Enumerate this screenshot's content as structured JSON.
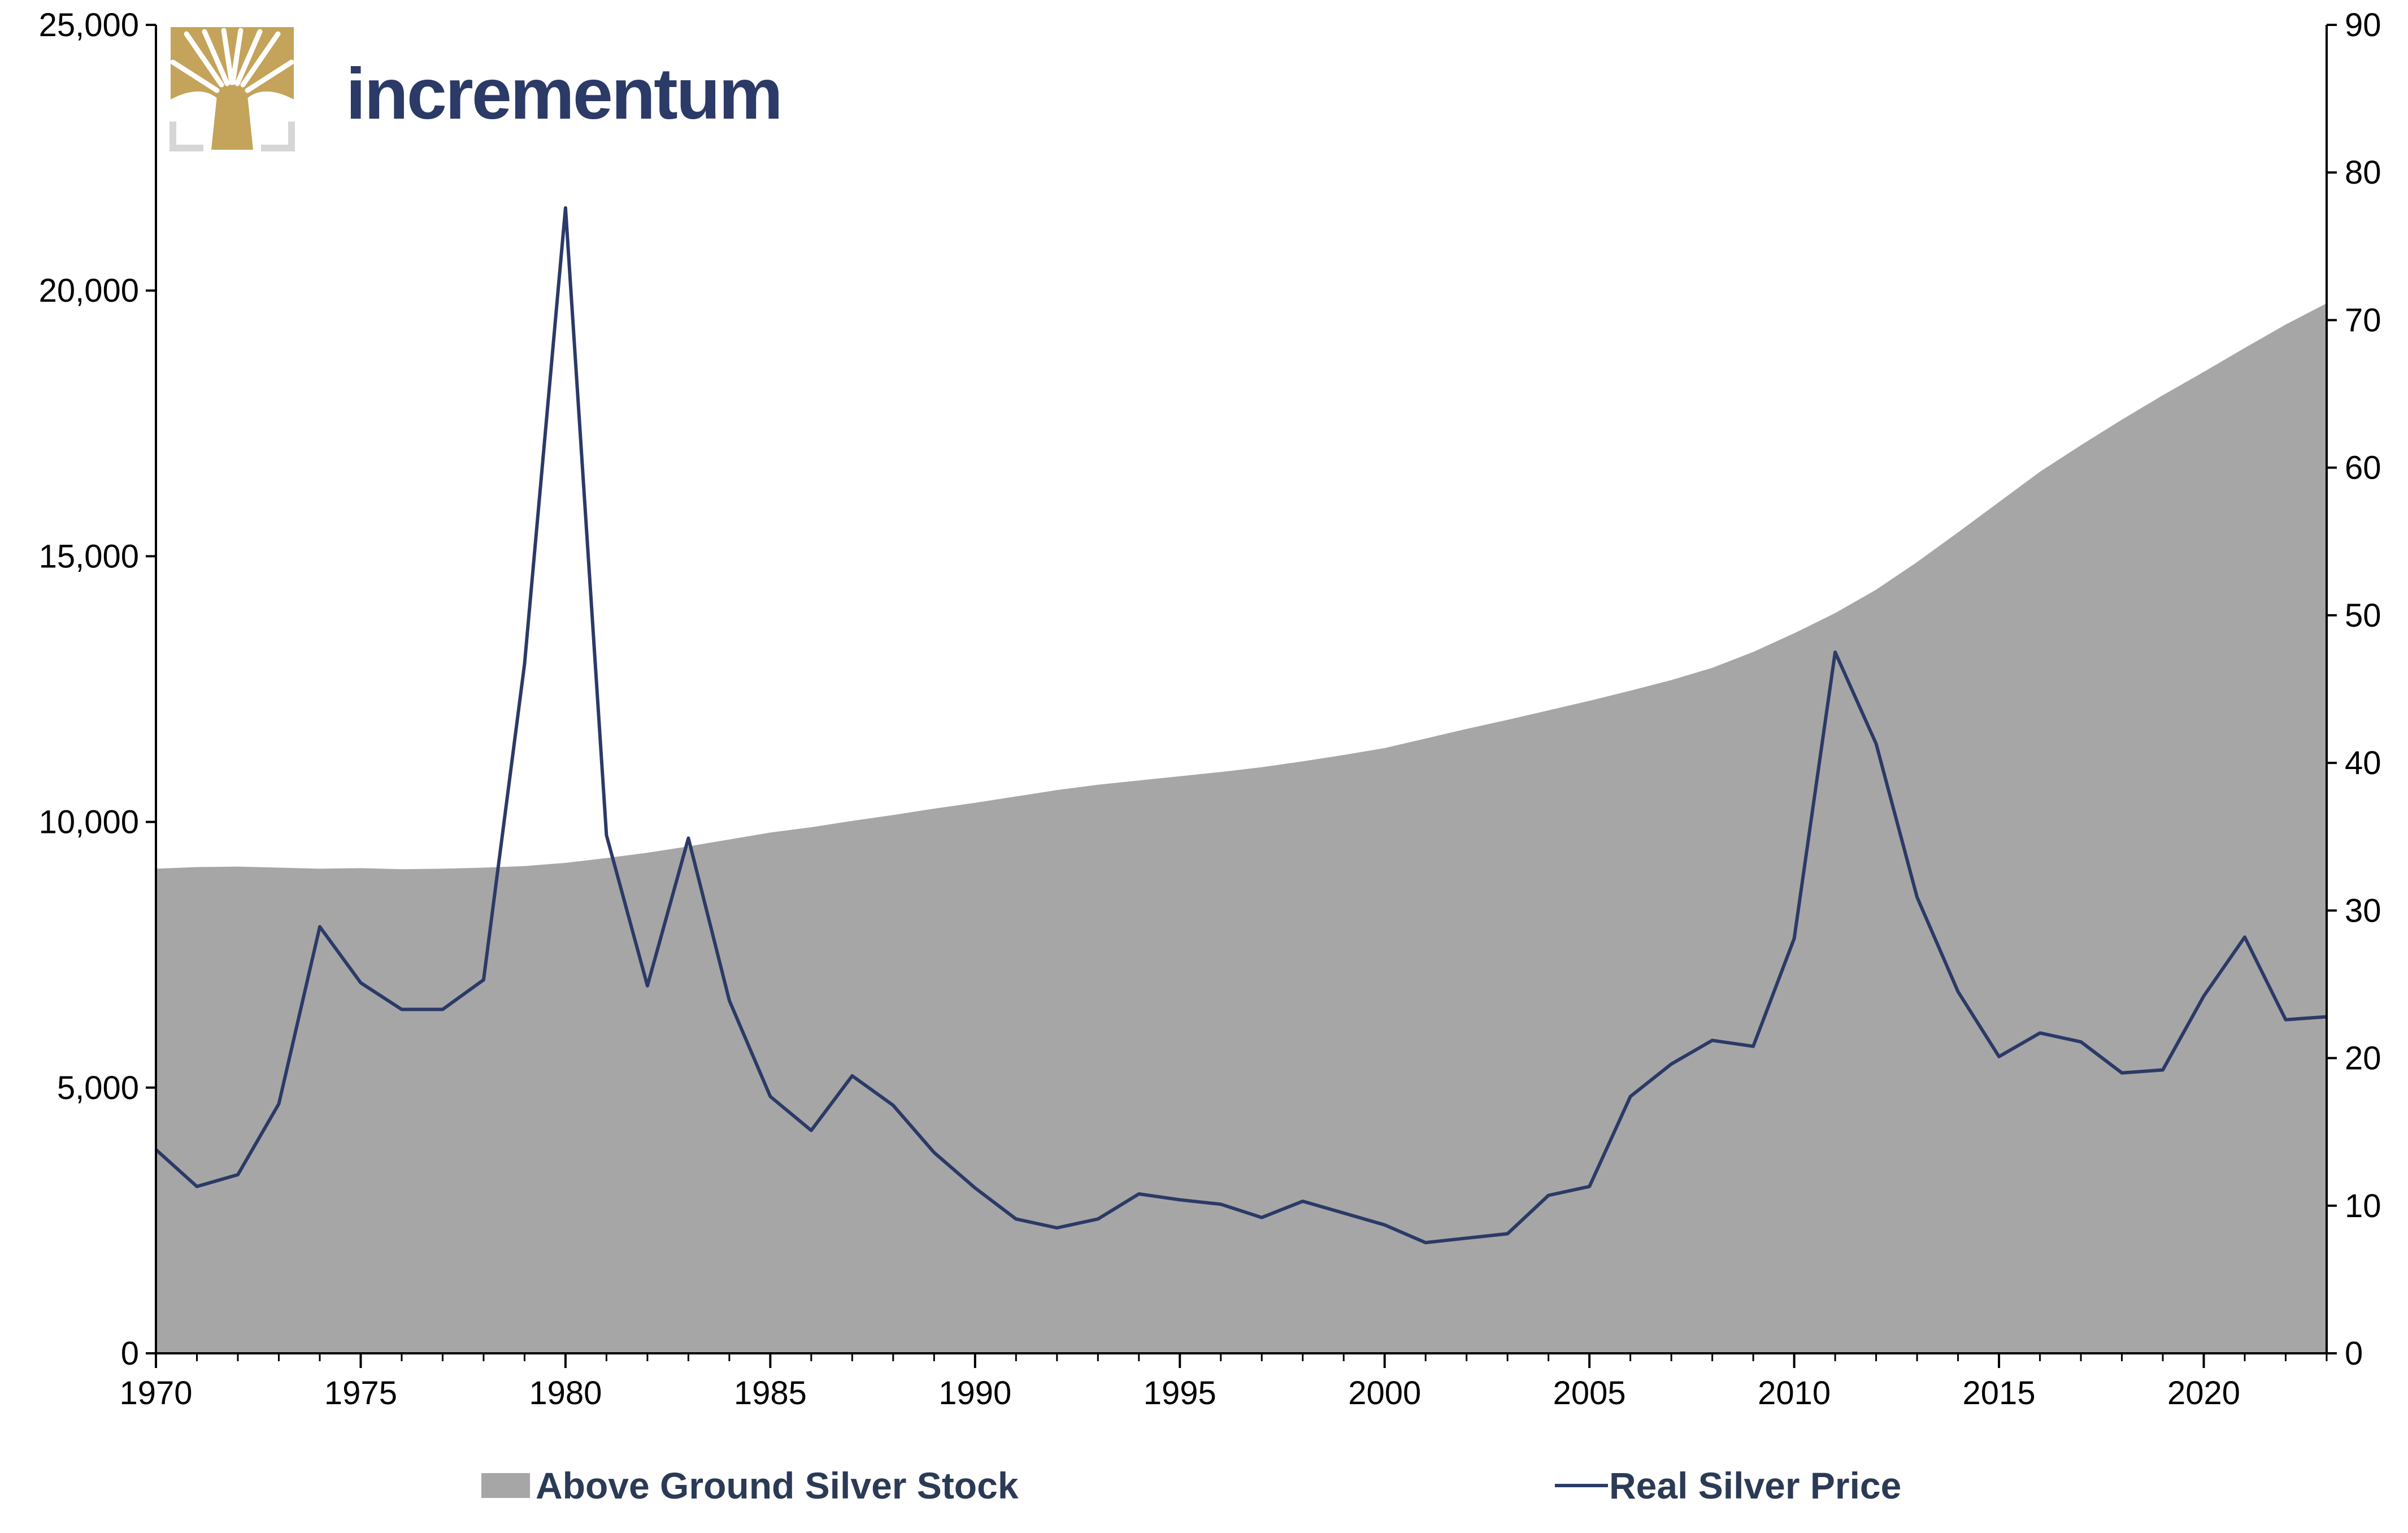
{
  "brand": {
    "name": "incrementum",
    "logo_color": "#c4a35a",
    "logo_frame_color": "#d6d6d6",
    "text_color": "#2b3a67"
  },
  "chart_data": {
    "type": "area",
    "title": "",
    "xlabel": "",
    "ylabel": "",
    "x": [
      1970,
      1971,
      1972,
      1973,
      1974,
      1975,
      1976,
      1977,
      1978,
      1979,
      1980,
      1981,
      1982,
      1983,
      1984,
      1985,
      1986,
      1987,
      1988,
      1989,
      1990,
      1991,
      1992,
      1993,
      1994,
      1995,
      1996,
      1997,
      1998,
      1999,
      2000,
      2001,
      2002,
      2003,
      2004,
      2005,
      2006,
      2007,
      2008,
      2009,
      2010,
      2011,
      2012,
      2013,
      2014,
      2015,
      2016,
      2017,
      2018,
      2019,
      2020,
      2021,
      2022,
      2023
    ],
    "xlim": [
      1970,
      2023
    ],
    "x_ticks": [
      "1970",
      "1975",
      "1980",
      "1985",
      "1990",
      "1995",
      "2000",
      "2005",
      "2010",
      "2015",
      "2020"
    ],
    "y_left": {
      "lim": [
        0,
        25000
      ],
      "ticks": [
        "0",
        "5,000",
        "10,000",
        "15,000",
        "20,000",
        "25,000"
      ]
    },
    "y_right": {
      "lim": [
        0,
        90
      ],
      "ticks": [
        "0",
        "10",
        "20",
        "30",
        "40",
        "50",
        "60",
        "70",
        "80",
        "90"
      ]
    },
    "grid": false,
    "legend_position": "bottom",
    "series": [
      {
        "name": "Above Ground Silver Stock",
        "type": "area",
        "axis": "left",
        "color": "#a6a6a6",
        "values": [
          9120,
          9150,
          9160,
          9140,
          9120,
          9130,
          9110,
          9120,
          9140,
          9170,
          9230,
          9320,
          9420,
          9540,
          9670,
          9800,
          9900,
          10020,
          10130,
          10250,
          10360,
          10480,
          10600,
          10700,
          10780,
          10860,
          10940,
          11030,
          11140,
          11260,
          11390,
          11570,
          11750,
          11920,
          12100,
          12280,
          12470,
          12670,
          12900,
          13200,
          13550,
          13930,
          14370,
          14890,
          15450,
          16020,
          16590,
          17090,
          17570,
          18030,
          18470,
          18920,
          19360,
          19760
        ]
      },
      {
        "name": "Real Silver Price",
        "type": "line",
        "axis": "right",
        "color": "#2b3a67",
        "values": [
          13.8,
          11.3,
          12.1,
          16.9,
          28.9,
          25.1,
          23.3,
          23.3,
          25.3,
          46.7,
          77.6,
          35.1,
          24.9,
          34.9,
          23.9,
          17.4,
          15.1,
          18.8,
          16.8,
          13.6,
          11.2,
          9.1,
          8.5,
          9.1,
          10.8,
          10.4,
          10.1,
          9.2,
          10.3,
          9.5,
          8.7,
          7.5,
          7.8,
          8.1,
          10.7,
          11.3,
          17.4,
          19.6,
          21.2,
          20.8,
          28.1,
          47.5,
          41.3,
          30.9,
          24.5,
          20.1,
          21.7,
          21.1,
          19.0,
          19.2,
          24.2,
          28.2,
          22.6,
          22.8
        ]
      }
    ]
  }
}
